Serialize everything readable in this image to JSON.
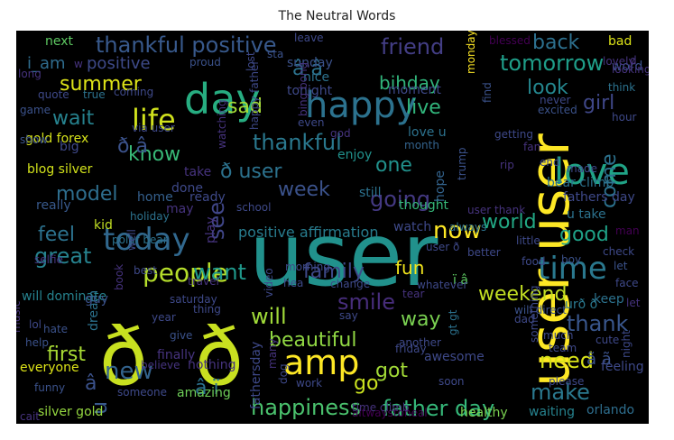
{
  "chart_data": {
    "type": "wordcloud",
    "title": "The Neutral Words",
    "background": "#000000",
    "palette": [
      "#440154",
      "#3b528b",
      "#21918c",
      "#5ec962",
      "#fde725"
    ],
    "words": [
      {
        "text": "user",
        "color": "#21918c"
      },
      {
        "text": "user user",
        "color": "#fde725"
      },
      {
        "text": "ð",
        "color": "#c8e020"
      },
      {
        "text": "ð",
        "color": "#c8e020"
      },
      {
        "text": "day",
        "color": "#27ad81"
      },
      {
        "text": "love",
        "color": "#20a386"
      },
      {
        "text": "happy",
        "color": "#2c728e"
      },
      {
        "text": "today",
        "color": "#31688e"
      },
      {
        "text": "amp",
        "color": "#fde725"
      },
      {
        "text": "time",
        "color": "#2a788e"
      },
      {
        "text": "life",
        "color": "#d0e11c"
      },
      {
        "text": "people",
        "color": "#b5de2b"
      },
      {
        "text": "thankful positive",
        "color": "#38598c"
      },
      {
        "text": "father day",
        "color": "#35b779"
      },
      {
        "text": "tomorrow",
        "color": "#1f9e89"
      },
      {
        "text": "happiness",
        "color": "#4ac16d"
      },
      {
        "text": "weekend",
        "color": "#c2df23"
      },
      {
        "text": "beautiful",
        "color": "#90d743"
      },
      {
        "text": "thankful",
        "color": "#2a788e"
      },
      {
        "text": "smile",
        "color": "#472d7b"
      },
      {
        "text": "friend",
        "color": "#433e85"
      },
      {
        "text": "great",
        "color": "#26828e"
      },
      {
        "text": "family",
        "color": "#3e4989"
      },
      {
        "text": "world",
        "color": "#22a884"
      },
      {
        "text": "make",
        "color": "#2a788e"
      },
      {
        "text": "need",
        "color": "#d8e219"
      },
      {
        "text": "thank",
        "color": "#39568c"
      },
      {
        "text": "going",
        "color": "#443983"
      },
      {
        "text": "want",
        "color": "#1f988b"
      },
      {
        "text": "back",
        "color": "#2d708e"
      },
      {
        "text": "now",
        "color": "#fde725"
      },
      {
        "text": "summer",
        "color": "#dde318"
      },
      {
        "text": "will",
        "color": "#a0da39"
      },
      {
        "text": "way",
        "color": "#7ad151"
      },
      {
        "text": "fun",
        "color": "#f2e51d"
      },
      {
        "text": "got",
        "color": "#a2da37"
      },
      {
        "text": "go",
        "color": "#cae11f"
      },
      {
        "text": "new",
        "color": "#33638d"
      },
      {
        "text": "good",
        "color": "#1fa187"
      },
      {
        "text": "come",
        "color": "#2c728e"
      },
      {
        "text": "feel",
        "color": "#2c728e"
      },
      {
        "text": "first",
        "color": "#a8db34"
      },
      {
        "text": "week",
        "color": "#3b528b"
      },
      {
        "text": "one",
        "color": "#21918c"
      },
      {
        "text": "know",
        "color": "#38b977"
      },
      {
        "text": "see",
        "color": "#404688"
      },
      {
        "text": "sad",
        "color": "#a5db36"
      },
      {
        "text": "live",
        "color": "#31b57b"
      },
      {
        "text": "bihday",
        "color": "#31b57b"
      },
      {
        "text": "look",
        "color": "#24868e"
      },
      {
        "text": "girl",
        "color": "#3f4788"
      },
      {
        "text": "wait",
        "color": "#26828e"
      },
      {
        "text": "model",
        "color": "#2e6e8e"
      },
      {
        "text": "i_am",
        "color": "#2f6c8e"
      },
      {
        "text": "positive",
        "color": "#3e4a89"
      },
      {
        "text": "ð user",
        "color": "#2c728e"
      },
      {
        "text": "ð â",
        "color": "#3b528b"
      },
      {
        "text": "â â",
        "color": "#2c728e"
      },
      {
        "text": "â ï",
        "color": "#2c728e"
      },
      {
        "text": "â",
        "color": "#3b528b"
      },
      {
        "text": "u",
        "color": "#38598c"
      },
      {
        "text": "ã ã",
        "color": "#3b528b"
      },
      {
        "text": "ï â",
        "color": "#5ec962"
      },
      {
        "text": "urð ð",
        "color": "#2a788e"
      },
      {
        "text": "positive affirmation",
        "color": "#287c8e"
      },
      {
        "text": "blog silver",
        "color": "#d2e21b"
      },
      {
        "text": "gold forex",
        "color": "#d5e21a"
      },
      {
        "text": "silver gold",
        "color": "#95d840"
      },
      {
        "text": "will dominate",
        "color": "#26828e"
      },
      {
        "text": "altwaystoheal",
        "color": "#440154"
      },
      {
        "text": "healthy",
        "color": "#7ad151"
      },
      {
        "text": "orlando",
        "color": "#2e6e8e"
      },
      {
        "text": "waiting",
        "color": "#26828e"
      },
      {
        "text": "fathersday",
        "color": "#3e4989"
      },
      {
        "text": "amazing",
        "color": "#6ece58"
      },
      {
        "text": "someone",
        "color": "#3e4989"
      },
      {
        "text": "funny",
        "color": "#3b528b"
      },
      {
        "text": "everyone",
        "color": "#dde318"
      },
      {
        "text": "finally",
        "color": "#46337e"
      },
      {
        "text": "nothing",
        "color": "#46337e"
      },
      {
        "text": "believe",
        "color": "#463480"
      },
      {
        "text": "give",
        "color": "#3b528b"
      },
      {
        "text": "help",
        "color": "#3b528b"
      },
      {
        "text": "hate",
        "color": "#3b528b"
      },
      {
        "text": "music",
        "color": "#46337e"
      },
      {
        "text": "dream",
        "color": "#2c728e"
      },
      {
        "text": "lol",
        "color": "#3e4989"
      },
      {
        "text": "guy",
        "color": "#3b528b"
      },
      {
        "text": "kid",
        "color": "#c2df23"
      },
      {
        "text": "selfie",
        "color": "#46337e"
      },
      {
        "text": "polar bear",
        "color": "#2c728e"
      },
      {
        "text": "really",
        "color": "#38598c"
      },
      {
        "text": "holiday",
        "color": "#2c728e"
      },
      {
        "text": "home",
        "color": "#35608d"
      },
      {
        "text": "done",
        "color": "#3e4989"
      },
      {
        "text": "ready",
        "color": "#3e4989"
      },
      {
        "text": "may",
        "color": "#46337e"
      },
      {
        "text": "take",
        "color": "#46337e"
      },
      {
        "text": "enjoy",
        "color": "#21918c"
      },
      {
        "text": "still",
        "color": "#2c728e"
      },
      {
        "text": "school",
        "color": "#3e4989"
      },
      {
        "text": "play",
        "color": "#46337e"
      },
      {
        "text": "thought",
        "color": "#35b779"
      },
      {
        "text": "watch",
        "color": "#3e4989"
      },
      {
        "text": "hope",
        "color": "#33638d"
      },
      {
        "text": "trump",
        "color": "#3b528b"
      },
      {
        "text": "month",
        "color": "#33638d"
      },
      {
        "text": "love u",
        "color": "#2c728e"
      },
      {
        "text": "sunday",
        "color": "#3b528b"
      },
      {
        "text": "tonight",
        "color": "#3e4989"
      },
      {
        "text": "moment",
        "color": "#3e4989"
      },
      {
        "text": "nice",
        "color": "#2c728e"
      },
      {
        "text": "coming",
        "color": "#3e4989"
      },
      {
        "text": "quote",
        "color": "#3e4989"
      },
      {
        "text": "true",
        "color": "#2c728e"
      },
      {
        "text": "game",
        "color": "#3b528b"
      },
      {
        "text": "show",
        "color": "#3b528b"
      },
      {
        "text": "big",
        "color": "#3e4989"
      },
      {
        "text": "next",
        "color": "#5ec962"
      },
      {
        "text": "sta",
        "color": "#3b528b"
      },
      {
        "text": "leave",
        "color": "#3e4989"
      },
      {
        "text": "lost",
        "color": "#3e4989"
      },
      {
        "text": "proud",
        "color": "#3b528b"
      },
      {
        "text": "via user",
        "color": "#3e4989"
      },
      {
        "text": "watching",
        "color": "#46337e"
      },
      {
        "text": "happy father",
        "color": "#3e4989"
      },
      {
        "text": "even",
        "color": "#3e4989"
      },
      {
        "text": "bing bong",
        "color": "#46337e"
      },
      {
        "text": "blessed",
        "color": "#440154"
      },
      {
        "text": "monday",
        "color": "#fde725"
      },
      {
        "text": "find",
        "color": "#3b528b"
      },
      {
        "text": "never",
        "color": "#3e4989"
      },
      {
        "text": "excited",
        "color": "#3b528b"
      },
      {
        "text": "word",
        "color": "#3b528b"
      },
      {
        "text": "bad",
        "color": "#dde318"
      },
      {
        "text": "think",
        "color": "#2c728e"
      },
      {
        "text": "hour",
        "color": "#3e4989"
      },
      {
        "text": "getting",
        "color": "#3e4989"
      },
      {
        "text": "end",
        "color": "#3e4989"
      },
      {
        "text": "made",
        "color": "#3e4989"
      },
      {
        "text": "bear climb",
        "color": "#2c728e"
      },
      {
        "text": "fathers day",
        "color": "#3e4989"
      },
      {
        "text": "u take",
        "color": "#2c728e"
      },
      {
        "text": "man",
        "color": "#440154"
      },
      {
        "text": "check",
        "color": "#3e4989"
      },
      {
        "text": "let",
        "color": "#3b528b"
      },
      {
        "text": "face",
        "color": "#3e4989"
      },
      {
        "text": "keep",
        "color": "#2c728e"
      },
      {
        "text": "boy",
        "color": "#3b528b"
      },
      {
        "text": "food",
        "color": "#3e4989"
      },
      {
        "text": "better",
        "color": "#3e4989"
      },
      {
        "text": "little",
        "color": "#3e4989"
      },
      {
        "text": "always",
        "color": "#2c728e"
      },
      {
        "text": "user ð",
        "color": "#3e4989"
      },
      {
        "text": "tear",
        "color": "#46337e"
      },
      {
        "text": "gt gt",
        "color": "#2c728e"
      },
      {
        "text": "will direct",
        "color": "#3b528b"
      },
      {
        "text": "dad",
        "color": "#3e4989"
      },
      {
        "text": "much",
        "color": "#3e4989"
      },
      {
        "text": "team",
        "color": "#3e4989"
      },
      {
        "text": "cute",
        "color": "#3e4989"
      },
      {
        "text": "something",
        "color": "#3e4989"
      },
      {
        "text": "feeling",
        "color": "#3e4989"
      },
      {
        "text": "night",
        "color": "#3e4989"
      },
      {
        "text": "please",
        "color": "#3e4989"
      },
      {
        "text": "another",
        "color": "#3e4989"
      },
      {
        "text": "friday",
        "color": "#3e4989"
      },
      {
        "text": "awesome",
        "color": "#3e4989"
      },
      {
        "text": "soon",
        "color": "#3e4989"
      },
      {
        "text": "work",
        "color": "#3e4989"
      },
      {
        "text": "dog",
        "color": "#3e4989"
      },
      {
        "text": "many",
        "color": "#46337e"
      },
      {
        "text": "say",
        "color": "#3e4989"
      },
      {
        "text": "hea",
        "color": "#3e4989"
      },
      {
        "text": "change",
        "color": "#3e4989"
      },
      {
        "text": "whatever",
        "color": "#3e4989"
      },
      {
        "text": "morning",
        "color": "#3e4989"
      },
      {
        "text": "video",
        "color": "#3e4989"
      },
      {
        "text": "travel",
        "color": "#46337e"
      },
      {
        "text": "best",
        "color": "#3e4989"
      },
      {
        "text": "saturday",
        "color": "#3e4989"
      },
      {
        "text": "year",
        "color": "#3e4989"
      },
      {
        "text": "thing",
        "color": "#3e4989"
      },
      {
        "text": "book",
        "color": "#46337e"
      },
      {
        "text": "well",
        "color": "#3e4989"
      },
      {
        "text": "looking",
        "color": "#46337e"
      },
      {
        "text": "lovely",
        "color": "#46337e"
      },
      {
        "text": "user thank",
        "color": "#46337e"
      },
      {
        "text": "rip",
        "color": "#46337e"
      },
      {
        "text": "fan",
        "color": "#46337e"
      },
      {
        "text": "let",
        "color": "#46337e"
      },
      {
        "text": "long",
        "color": "#46337e"
      },
      {
        "text": "god",
        "color": "#46337e"
      },
      {
        "text": "time climb",
        "color": "#46337e"
      },
      {
        "text": "d",
        "color": "#46337e"
      },
      {
        "text": "w",
        "color": "#46337e"
      },
      {
        "text": "cait",
        "color": "#46337e"
      }
    ]
  }
}
